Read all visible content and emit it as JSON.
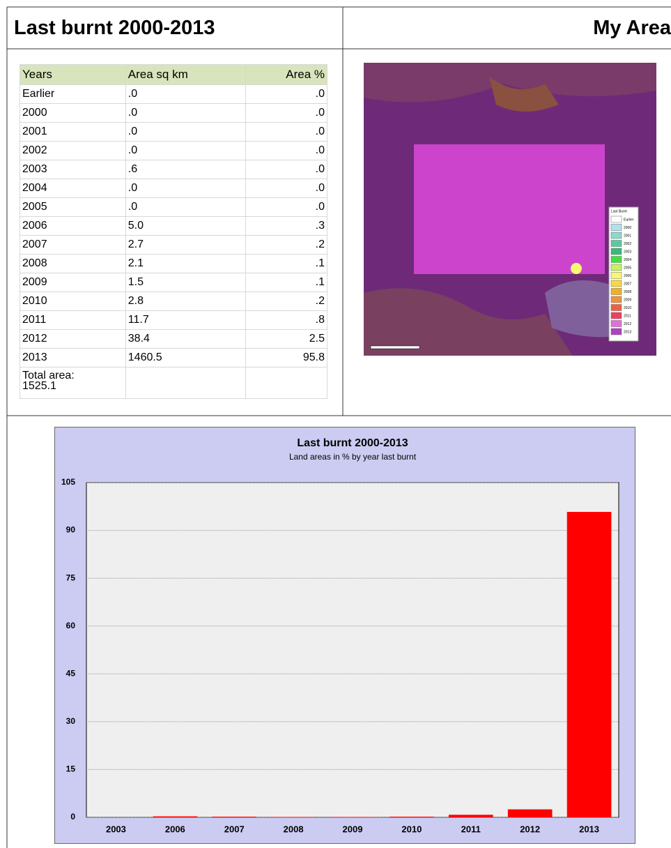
{
  "header": {
    "title": "Last burnt 2000-2013",
    "map_title": "My Area"
  },
  "table": {
    "columns": [
      "Years",
      "Area sq km",
      "Area %"
    ],
    "rows": [
      [
        " Earlier",
        ".0",
        ".0"
      ],
      [
        "2000",
        ".0",
        ".0"
      ],
      [
        "2001",
        ".0",
        ".0"
      ],
      [
        "2002",
        ".0",
        ".0"
      ],
      [
        "2003",
        ".6",
        ".0"
      ],
      [
        "2004",
        ".0",
        ".0"
      ],
      [
        "2005",
        ".0",
        ".0"
      ],
      [
        "2006",
        "5.0",
        ".3"
      ],
      [
        "2007",
        "2.7",
        ".2"
      ],
      [
        "2008",
        "2.1",
        ".1"
      ],
      [
        "2009",
        "1.5",
        ".1"
      ],
      [
        "2010",
        "2.8",
        ".2"
      ],
      [
        "2011",
        "11.7",
        ".8"
      ],
      [
        "2012",
        "38.4",
        "2.5"
      ],
      [
        "2013",
        "1460.5",
        "95.8"
      ]
    ],
    "total": "Total area:\n1525.1"
  },
  "map_legend": {
    "title": "Last Burnt",
    "items": [
      {
        "label": "Earlier",
        "color": "#ffffff"
      },
      {
        "label": "2000",
        "color": "#b3e0f0"
      },
      {
        "label": "2001",
        "color": "#8fd8c8"
      },
      {
        "label": "2002",
        "color": "#5cc8a0"
      },
      {
        "label": "2003",
        "color": "#3cb878"
      },
      {
        "label": "2004",
        "color": "#40e040"
      },
      {
        "label": "2005",
        "color": "#c8f060"
      },
      {
        "label": "2006",
        "color": "#f8f870"
      },
      {
        "label": "2007",
        "color": "#f8d840"
      },
      {
        "label": "2008",
        "color": "#f0b020"
      },
      {
        "label": "2009",
        "color": "#f09040"
      },
      {
        "label": "2010",
        "color": "#f06040"
      },
      {
        "label": "2011",
        "color": "#f04060"
      },
      {
        "label": "2012",
        "color": "#e070d8"
      },
      {
        "label": "2013",
        "color": "#b040c0"
      }
    ]
  },
  "chart_data": {
    "type": "bar",
    "title": "Last burnt 2000-2013",
    "subtitle": "Land areas in % by year last burnt",
    "categories": [
      "2003",
      "2006",
      "2007",
      "2008",
      "2009",
      "2010",
      "2011",
      "2012",
      "2013"
    ],
    "values": [
      0,
      0.3,
      0.2,
      0.1,
      0.1,
      0.2,
      0.8,
      2.5,
      95.8
    ],
    "color": "#ff0000",
    "ylim": [
      0,
      105
    ],
    "yticks": [
      0,
      15,
      30,
      45,
      60,
      75,
      90,
      105
    ],
    "grid": true
  }
}
